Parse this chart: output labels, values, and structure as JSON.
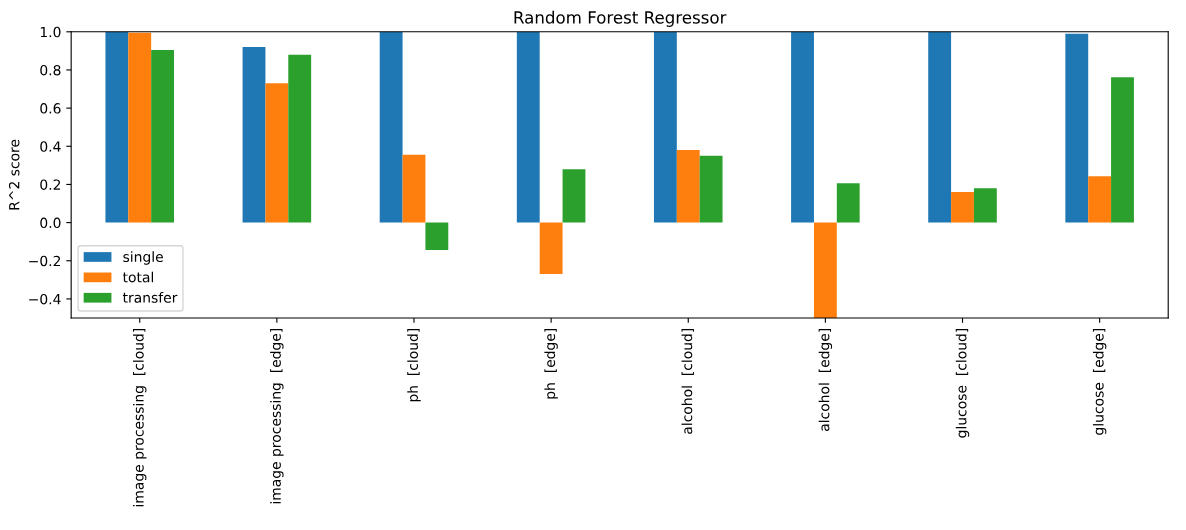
{
  "chart_data": {
    "type": "bar",
    "title": "Random Forest Regressor",
    "ylabel": "R^2 score",
    "categories": [
      "image processing  [cloud]",
      "image processing  [edge]",
      "ph  [cloud]",
      "ph  [edge]",
      "alcohol  [cloud]",
      "alcohol  [edge]",
      "glucose  [cloud]",
      "glucose  [edge]"
    ],
    "series": [
      {
        "name": "single",
        "color": "#1f77b4",
        "values": [
          1.0,
          0.92,
          1.0,
          1.0,
          1.0,
          1.0,
          1.0,
          0.99
        ]
      },
      {
        "name": "total",
        "color": "#ff7f0e",
        "values": [
          0.995,
          0.73,
          0.355,
          -0.27,
          0.38,
          -0.5,
          0.16,
          0.243
        ]
      },
      {
        "name": "transfer",
        "color": "#2ca02c",
        "values": [
          0.905,
          0.88,
          -0.143,
          0.28,
          0.35,
          0.206,
          0.18,
          0.762
        ]
      }
    ],
    "ylim": [
      -0.5,
      1.0
    ],
    "yticks": [
      {
        "value": -0.4,
        "label": "−0.4"
      },
      {
        "value": -0.2,
        "label": "−0.2"
      },
      {
        "value": 0,
        "label": "0.0"
      },
      0.2,
      0.4,
      0.6,
      0.8,
      {
        "value": 1,
        "label": "1.0"
      }
    ],
    "legend": "lower left",
    "grid": false
  }
}
